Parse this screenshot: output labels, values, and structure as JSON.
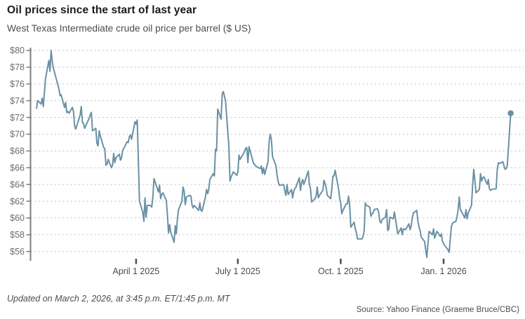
{
  "header": {
    "title": "Oil prices since the start of last year",
    "subtitle": "West Texas Intermediate crude oil price per barrel ($ US)"
  },
  "footer": {
    "updated": "Updated on March 2, 2026, at 3:45 p.m. ET/1:45 p.m. MT",
    "source": "Source: Yahoo Finance (Graeme Bruce/CBC)"
  },
  "colors": {
    "line": "#6a91a5",
    "end_dot": "#6a91a5",
    "grid": "#c9c9c9",
    "axis": "#7d7d7d",
    "x_tick": "#4f4f4f",
    "y_tick_label": "#6e6e6e",
    "x_tick_label": "#4a4a4a",
    "background": "#ffffff"
  },
  "chart_data": {
    "type": "line",
    "title": "Oil prices since the start of last year",
    "subtitle": "West Texas Intermediate crude oil price per barrel ($ US)",
    "xlabel": "",
    "ylabel": "Price per barrel ($ US)",
    "ylim": [
      56,
      80
    ],
    "y_tick_step": 2,
    "y_tick_prefix": "$",
    "y_ticks": [
      80,
      78,
      76,
      74,
      72,
      70,
      68,
      66,
      64,
      62,
      60,
      58,
      56
    ],
    "x_unit": "days since Jan 1 2025",
    "x_ticks": [
      {
        "label": "April 1 2025",
        "day": 90
      },
      {
        "label": "July 1 2025",
        "day": 181
      },
      {
        "label": "Oct. 1 2025",
        "day": 273
      },
      {
        "label": "Jan. 1 2026",
        "day": 365
      }
    ],
    "grid": "horizontal-dashed",
    "legend": "none",
    "end_marker": "dot",
    "last_value": 72.5,
    "series": [
      {
        "name": "WTI crude oil price ($ US per barrel)",
        "points": [
          [
            1,
            73.1
          ],
          [
            2,
            74.0
          ],
          [
            5,
            73.6
          ],
          [
            6,
            74.3
          ],
          [
            7,
            73.3
          ],
          [
            9,
            76.6
          ],
          [
            12,
            78.8
          ],
          [
            13,
            77.5
          ],
          [
            14,
            80.0
          ],
          [
            15,
            78.7
          ],
          [
            16,
            77.9
          ],
          [
            20,
            75.9
          ],
          [
            21,
            75.4
          ],
          [
            22,
            74.6
          ],
          [
            23,
            74.7
          ],
          [
            26,
            73.2
          ],
          [
            27,
            73.8
          ],
          [
            28,
            72.6
          ],
          [
            29,
            72.7
          ],
          [
            30,
            72.5
          ],
          [
            33,
            73.2
          ],
          [
            34,
            72.7
          ],
          [
            35,
            71.0
          ],
          [
            36,
            70.6
          ],
          [
            37,
            71.0
          ],
          [
            40,
            72.3
          ],
          [
            41,
            73.3
          ],
          [
            42,
            71.4
          ],
          [
            43,
            71.3
          ],
          [
            44,
            70.7
          ],
          [
            48,
            71.9
          ],
          [
            49,
            72.3
          ],
          [
            50,
            72.6
          ],
          [
            51,
            70.4
          ],
          [
            54,
            70.7
          ],
          [
            55,
            68.9
          ],
          [
            56,
            68.6
          ],
          [
            57,
            70.4
          ],
          [
            58,
            69.8
          ],
          [
            61,
            68.4
          ],
          [
            62,
            68.3
          ],
          [
            63,
            66.3
          ],
          [
            64,
            66.4
          ],
          [
            65,
            67.0
          ],
          [
            68,
            66.0
          ],
          [
            69,
            66.3
          ],
          [
            70,
            67.7
          ],
          [
            71,
            66.6
          ],
          [
            72,
            67.2
          ],
          [
            75,
            67.6
          ],
          [
            76,
            66.9
          ],
          [
            77,
            67.2
          ],
          [
            78,
            68.1
          ],
          [
            79,
            68.3
          ],
          [
            82,
            69.1
          ],
          [
            83,
            69.0
          ],
          [
            84,
            69.7
          ],
          [
            85,
            69.9
          ],
          [
            86,
            69.4
          ],
          [
            89,
            71.5
          ],
          [
            90,
            71.2
          ],
          [
            91,
            71.7
          ],
          [
            92,
            67.0
          ],
          [
            93,
            62.0
          ],
          [
            96,
            60.7
          ],
          [
            97,
            59.6
          ],
          [
            98,
            62.4
          ],
          [
            99,
            60.1
          ],
          [
            100,
            61.5
          ],
          [
            103,
            61.5
          ],
          [
            104,
            61.3
          ],
          [
            105,
            62.5
          ],
          [
            106,
            64.7
          ],
          [
            110,
            63.1
          ],
          [
            111,
            63.9
          ],
          [
            112,
            62.3
          ],
          [
            113,
            62.8
          ],
          [
            114,
            63.0
          ],
          [
            117,
            62.1
          ],
          [
            118,
            60.4
          ],
          [
            119,
            58.2
          ],
          [
            120,
            59.2
          ],
          [
            121,
            58.3
          ],
          [
            124,
            57.1
          ],
          [
            125,
            59.1
          ],
          [
            126,
            58.1
          ],
          [
            127,
            59.9
          ],
          [
            128,
            61.0
          ],
          [
            131,
            62.0
          ],
          [
            132,
            63.7
          ],
          [
            133,
            63.2
          ],
          [
            134,
            61.6
          ],
          [
            135,
            62.5
          ],
          [
            138,
            62.7
          ],
          [
            139,
            62.6
          ],
          [
            140,
            61.6
          ],
          [
            141,
            61.2
          ],
          [
            142,
            61.5
          ],
          [
            146,
            60.9
          ],
          [
            147,
            61.8
          ],
          [
            148,
            60.9
          ],
          [
            149,
            60.8
          ],
          [
            152,
            62.5
          ],
          [
            153,
            63.4
          ],
          [
            154,
            62.9
          ],
          [
            155,
            63.4
          ],
          [
            156,
            64.6
          ],
          [
            159,
            65.3
          ],
          [
            160,
            65.0
          ],
          [
            161,
            68.2
          ],
          [
            162,
            68.0
          ],
          [
            163,
            73.0
          ],
          [
            166,
            71.8
          ],
          [
            167,
            74.8
          ],
          [
            168,
            75.1
          ],
          [
            170,
            74.0
          ],
          [
            173,
            68.5
          ],
          [
            174,
            64.4
          ],
          [
            175,
            64.9
          ],
          [
            176,
            65.2
          ],
          [
            177,
            65.5
          ],
          [
            180,
            65.1
          ],
          [
            181,
            65.5
          ],
          [
            182,
            67.5
          ],
          [
            183,
            67.0
          ],
          [
            187,
            67.9
          ],
          [
            188,
            68.3
          ],
          [
            189,
            68.4
          ],
          [
            190,
            66.6
          ],
          [
            191,
            68.5
          ],
          [
            194,
            67.0
          ],
          [
            195,
            66.5
          ],
          [
            196,
            66.4
          ],
          [
            197,
            66.2
          ],
          [
            198,
            66.1
          ],
          [
            201,
            65.9
          ],
          [
            202,
            66.2
          ],
          [
            203,
            65.3
          ],
          [
            204,
            66.0
          ],
          [
            205,
            65.2
          ],
          [
            208,
            66.7
          ],
          [
            209,
            69.2
          ],
          [
            210,
            70.0
          ],
          [
            211,
            69.3
          ],
          [
            212,
            67.3
          ],
          [
            215,
            66.3
          ],
          [
            216,
            65.2
          ],
          [
            217,
            64.4
          ],
          [
            218,
            63.9
          ],
          [
            219,
            63.9
          ],
          [
            222,
            64.0
          ],
          [
            223,
            63.2
          ],
          [
            224,
            62.7
          ],
          [
            225,
            64.0
          ],
          [
            226,
            62.8
          ],
          [
            229,
            63.4
          ],
          [
            230,
            62.4
          ],
          [
            231,
            63.2
          ],
          [
            232,
            63.5
          ],
          [
            233,
            63.7
          ],
          [
            236,
            64.8
          ],
          [
            237,
            63.3
          ],
          [
            238,
            64.2
          ],
          [
            239,
            64.6
          ],
          [
            240,
            64.0
          ],
          [
            244,
            65.6
          ],
          [
            245,
            64.0
          ],
          [
            246,
            63.5
          ],
          [
            247,
            61.9
          ],
          [
            250,
            62.3
          ],
          [
            251,
            62.6
          ],
          [
            252,
            63.7
          ],
          [
            253,
            62.4
          ],
          [
            254,
            62.7
          ],
          [
            257,
            63.3
          ],
          [
            258,
            64.5
          ],
          [
            259,
            64.1
          ],
          [
            260,
            63.6
          ],
          [
            261,
            62.7
          ],
          [
            264,
            62.3
          ],
          [
            265,
            63.4
          ],
          [
            266,
            65.0
          ],
          [
            267,
            65.0
          ],
          [
            268,
            65.7
          ],
          [
            271,
            63.5
          ],
          [
            272,
            62.4
          ],
          [
            273,
            61.8
          ],
          [
            274,
            60.5
          ],
          [
            275,
            60.9
          ],
          [
            278,
            61.7
          ],
          [
            279,
            61.7
          ],
          [
            280,
            62.6
          ],
          [
            281,
            61.5
          ],
          [
            282,
            58.9
          ],
          [
            285,
            59.5
          ],
          [
            286,
            58.7
          ],
          [
            287,
            58.3
          ],
          [
            288,
            57.5
          ],
          [
            289,
            57.5
          ],
          [
            292,
            57.5
          ],
          [
            293,
            57.8
          ],
          [
            294,
            58.5
          ],
          [
            295,
            61.8
          ],
          [
            296,
            61.5
          ],
          [
            299,
            61.3
          ],
          [
            300,
            60.2
          ],
          [
            301,
            60.5
          ],
          [
            302,
            60.6
          ],
          [
            303,
            61.0
          ],
          [
            306,
            61.1
          ],
          [
            307,
            60.6
          ],
          [
            308,
            59.6
          ],
          [
            309,
            59.4
          ],
          [
            310,
            59.8
          ],
          [
            313,
            60.1
          ],
          [
            314,
            61.0
          ],
          [
            315,
            58.5
          ],
          [
            316,
            58.7
          ],
          [
            317,
            60.1
          ],
          [
            320,
            59.9
          ],
          [
            321,
            60.7
          ],
          [
            322,
            59.9
          ],
          [
            323,
            59.0
          ],
          [
            324,
            58.1
          ],
          [
            327,
            58.8
          ],
          [
            328,
            58.0
          ],
          [
            329,
            58.7
          ],
          [
            331,
            58.6
          ],
          [
            334,
            59.3
          ],
          [
            335,
            58.6
          ],
          [
            336,
            59.0
          ],
          [
            337,
            60.0
          ],
          [
            338,
            60.6
          ],
          [
            341,
            60.9
          ],
          [
            342,
            59.6
          ],
          [
            343,
            58.9
          ],
          [
            344,
            58.5
          ],
          [
            345,
            57.7
          ],
          [
            348,
            57.2
          ],
          [
            349,
            56.2
          ],
          [
            350,
            55.3
          ],
          [
            351,
            56.9
          ],
          [
            352,
            58.4
          ],
          [
            355,
            58.0
          ],
          [
            356,
            58.7
          ],
          [
            357,
            57.6
          ],
          [
            359,
            58.4
          ],
          [
            362,
            57.8
          ],
          [
            363,
            58.1
          ],
          [
            364,
            57.2
          ],
          [
            366,
            56.7
          ],
          [
            369,
            56.2
          ],
          [
            370,
            55.9
          ],
          [
            371,
            57.6
          ],
          [
            372,
            59.0
          ],
          [
            373,
            59.4
          ],
          [
            376,
            59.6
          ],
          [
            377,
            60.1
          ],
          [
            378,
            61.0
          ],
          [
            379,
            62.5
          ],
          [
            380,
            61.0
          ],
          [
            384,
            60.0
          ],
          [
            385,
            61.0
          ],
          [
            386,
            59.9
          ],
          [
            387,
            60.6
          ],
          [
            390,
            61.5
          ],
          [
            391,
            63.9
          ],
          [
            392,
            65.8
          ],
          [
            393,
            64.5
          ],
          [
            394,
            63.0
          ],
          [
            397,
            63.4
          ],
          [
            398,
            65.3
          ],
          [
            399,
            64.4
          ],
          [
            400,
            64.8
          ],
          [
            401,
            64.9
          ],
          [
            404,
            64.0
          ],
          [
            405,
            64.6
          ],
          [
            406,
            63.5
          ],
          [
            407,
            63.3
          ],
          [
            408,
            63.4
          ],
          [
            412,
            63.5
          ],
          [
            413,
            65.8
          ],
          [
            414,
            66.6
          ],
          [
            415,
            66.5
          ],
          [
            418,
            66.7
          ],
          [
            419,
            66.2
          ],
          [
            420,
            65.8
          ],
          [
            421,
            65.9
          ],
          [
            422,
            66.3
          ],
          [
            425,
            72.5
          ]
        ]
      }
    ]
  }
}
